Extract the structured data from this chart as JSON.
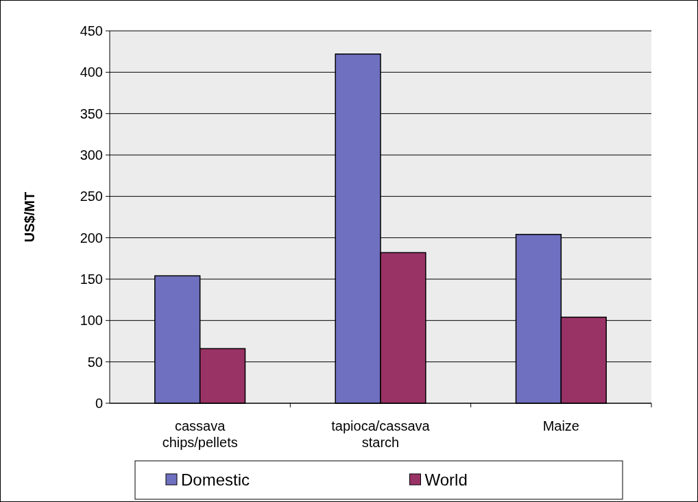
{
  "chart_data": {
    "type": "bar",
    "ylabel": "US$/MT",
    "categories": [
      "cassava chips/pellets",
      "tapioca/cassava starch",
      "Maize"
    ],
    "series": [
      {
        "name": "Domestic",
        "color": "#7070c0",
        "values": [
          154,
          422,
          204
        ]
      },
      {
        "name": "World",
        "color": "#993366",
        "values": [
          66,
          182,
          104
        ]
      }
    ],
    "ylim": [
      0,
      450
    ],
    "yticks": [
      0,
      50,
      100,
      150,
      200,
      250,
      300,
      350,
      400,
      450
    ],
    "grid": "y",
    "legend": "bottom"
  }
}
